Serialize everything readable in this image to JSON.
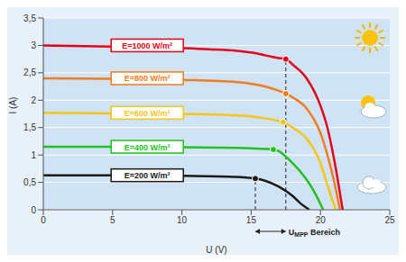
{
  "chart_data": {
    "type": "line",
    "xlabel": "U (V)",
    "ylabel": "I (A)",
    "xlim": [
      0,
      25
    ],
    "xticks": [
      0,
      5,
      10,
      15,
      20,
      25
    ],
    "ylim": [
      0,
      3.5
    ],
    "yticks": [
      0,
      {
        "value": 0.5,
        "label": "0,5"
      },
      1,
      {
        "value": 1.5,
        "label": "1,5"
      },
      2,
      {
        "value": 2.5,
        "label": "2,5"
      },
      3,
      {
        "value": 3.5,
        "label": "3,5"
      }
    ],
    "grid": true,
    "series": [
      {
        "name": "E=1000 W/m²",
        "color": "#e3001b",
        "x": [
          0,
          5,
          10,
          12,
          14,
          15,
          16,
          17,
          17.5,
          18,
          19,
          20,
          20.5,
          21,
          21.6
        ],
        "values": [
          3.0,
          2.98,
          2.95,
          2.93,
          2.9,
          2.87,
          2.82,
          2.77,
          2.75,
          2.65,
          2.4,
          1.9,
          1.5,
          0.9,
          0
        ],
        "mpp_x": 17.5,
        "mpp_y": 2.75
      },
      {
        "name": "E=800 W/m²",
        "color": "#f07d22",
        "x": [
          0,
          5,
          10,
          14,
          16,
          17,
          17.5,
          18,
          19,
          20,
          20.5,
          21,
          21.4
        ],
        "values": [
          2.4,
          2.39,
          2.37,
          2.33,
          2.25,
          2.17,
          2.12,
          2.05,
          1.85,
          1.4,
          1.0,
          0.5,
          0
        ],
        "mpp_x": 17.5,
        "mpp_y": 2.12
      },
      {
        "name": "E=600 W/m²",
        "color": "#f5c518",
        "x": [
          0,
          5,
          10,
          14,
          16,
          17,
          17.3,
          18,
          19,
          20,
          20.5,
          21.1
        ],
        "values": [
          1.77,
          1.76,
          1.75,
          1.72,
          1.67,
          1.62,
          1.6,
          1.5,
          1.3,
          0.85,
          0.45,
          0
        ],
        "mpp_x": 17.3,
        "mpp_y": 1.6
      },
      {
        "name": "E=400 W/m²",
        "color": "#22c122",
        "x": [
          0,
          5,
          10,
          14,
          16,
          16.6,
          17,
          17.5,
          18,
          19,
          19.5,
          20.2
        ],
        "values": [
          1.15,
          1.15,
          1.14,
          1.13,
          1.11,
          1.1,
          1.07,
          0.97,
          0.85,
          0.55,
          0.35,
          0
        ],
        "mpp_x": 16.6,
        "mpp_y": 1.1
      },
      {
        "name": "E=200 W/m²",
        "color": "#1a1a1a",
        "x": [
          0,
          5,
          10,
          14,
          15,
          15.3,
          16,
          17,
          18,
          18.5,
          19.2
        ],
        "values": [
          0.63,
          0.63,
          0.62,
          0.6,
          0.58,
          0.57,
          0.53,
          0.42,
          0.25,
          0.13,
          0
        ],
        "mpp_x": 15.3,
        "mpp_y": 0.57
      }
    ],
    "annotations": [
      {
        "text": "UMPP Bereich",
        "x_range": [
          15.3,
          17.5
        ]
      }
    ]
  }
}
